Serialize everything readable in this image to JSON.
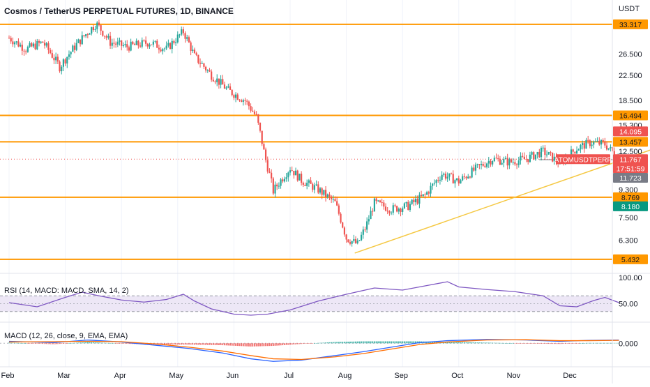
{
  "header": {
    "title": "Cosmos / TetherUS PERPETUAL FUTURES, 1D, BINANCE"
  },
  "colors": {
    "up": "#26a69a",
    "down": "#ef5350",
    "level_line": "#ff9800",
    "trendline": "#f5c842",
    "stop_zone": "#f8c4c4",
    "target_zone": "#c6ece4",
    "rsi_line": "#7e57c2",
    "rsi_band": "#ede7f6",
    "macd_line": "#2962ff",
    "signal_line": "#ff6d00",
    "axis_text": "#131722"
  },
  "chart_data": [
    {
      "type": "candlestick",
      "title": "Cosmos / TetherUS PERPETUAL FUTURES, 1D, BINANCE",
      "currency": "USDT",
      "y_scale": "log",
      "ylim": [
        5.2,
        38.5
      ],
      "x_ticks": [
        "Feb",
        "Mar",
        "Apr",
        "May",
        "Jun",
        "Jul",
        "Aug",
        "Sep",
        "Oct",
        "Nov",
        "Dec"
      ],
      "y_ticks": [
        "26.500",
        "22.500",
        "18.500",
        "15.300",
        "12.500",
        "9.300",
        "7.500",
        "6.300"
      ],
      "close_path": [
        {
          "month": 0.0,
          "price": 30.0
        },
        {
          "month": 0.3,
          "price": 27.5
        },
        {
          "month": 0.6,
          "price": 29.0
        },
        {
          "month": 0.9,
          "price": 24.0
        },
        {
          "month": 1.2,
          "price": 28.5
        },
        {
          "month": 1.55,
          "price": 33.5
        },
        {
          "month": 1.8,
          "price": 29.0
        },
        {
          "month": 2.1,
          "price": 28.0
        },
        {
          "month": 2.5,
          "price": 29.0
        },
        {
          "month": 2.8,
          "price": 27.5
        },
        {
          "month": 3.1,
          "price": 31.5
        },
        {
          "month": 3.3,
          "price": 26.0
        },
        {
          "month": 3.6,
          "price": 22.5
        },
        {
          "month": 3.9,
          "price": 20.0
        },
        {
          "month": 4.2,
          "price": 18.5
        },
        {
          "month": 4.4,
          "price": 16.3
        },
        {
          "month": 4.55,
          "price": 12.0
        },
        {
          "month": 4.7,
          "price": 9.2
        },
        {
          "month": 5.0,
          "price": 11.0
        },
        {
          "month": 5.2,
          "price": 10.0
        },
        {
          "month": 5.5,
          "price": 9.3
        },
        {
          "month": 5.8,
          "price": 8.4
        },
        {
          "month": 6.0,
          "price": 6.4
        },
        {
          "month": 6.2,
          "price": 6.1
        },
        {
          "month": 6.35,
          "price": 7.0
        },
        {
          "month": 6.5,
          "price": 8.4
        },
        {
          "month": 6.8,
          "price": 8.0
        },
        {
          "month": 7.1,
          "price": 8.2
        },
        {
          "month": 7.4,
          "price": 8.9
        },
        {
          "month": 7.7,
          "price": 10.5
        },
        {
          "month": 8.0,
          "price": 9.9
        },
        {
          "month": 8.3,
          "price": 10.9
        },
        {
          "month": 8.6,
          "price": 11.8
        },
        {
          "month": 8.9,
          "price": 11.5
        },
        {
          "month": 9.2,
          "price": 11.8
        },
        {
          "month": 9.5,
          "price": 12.5
        },
        {
          "month": 9.8,
          "price": 11.4
        },
        {
          "month": 10.1,
          "price": 12.8
        },
        {
          "month": 10.35,
          "price": 13.4
        },
        {
          "month": 10.6,
          "price": 13.2
        },
        {
          "month": 10.85,
          "price": 11.77
        }
      ],
      "horizontal_levels": [
        33.317,
        16.494,
        13.457,
        8.769,
        5.432
      ],
      "trendline": {
        "from": {
          "month": 6.15,
          "price": 5.7
        },
        "to": {
          "month": 11.6,
          "price": 13.0
        }
      },
      "position": {
        "type": "short",
        "stop": 14.095,
        "entry": 11.723,
        "target": 8.18
      },
      "price_labels": [
        {
          "text": "33.317",
          "value": 33.317,
          "kind": "level"
        },
        {
          "text": "16.494",
          "value": 16.494,
          "kind": "level"
        },
        {
          "text": "14.095",
          "value": 14.095,
          "kind": "stop"
        },
        {
          "text": "13.457",
          "value": 13.457,
          "kind": "level"
        },
        {
          "text": "11.767",
          "value": 11.767,
          "kind": "last"
        },
        {
          "text": "17:51:59",
          "value": 11.767,
          "kind": "countdown"
        },
        {
          "text": "11.723",
          "value": 11.723,
          "kind": "entry"
        },
        {
          "text": "8.769",
          "value": 8.769,
          "kind": "level"
        },
        {
          "text": "8.180",
          "value": 8.18,
          "kind": "target"
        },
        {
          "text": "5.432",
          "value": 5.432,
          "kind": "level"
        }
      ],
      "symbol_tag": "ATOMUSDTPERP",
      "last_price": 11.767
    },
    {
      "type": "line",
      "title": "RSI (14, MACD: MACD, SMA, 14, 2)",
      "ylim": [
        20,
        100
      ],
      "band": [
        35,
        65
      ],
      "y_ticks": [
        "100.00",
        "50.00"
      ],
      "series": [
        {
          "values": [
            {
              "month": 0.0,
              "value": 52
            },
            {
              "month": 0.5,
              "value": 44
            },
            {
              "month": 1.0,
              "value": 62
            },
            {
              "month": 1.3,
              "value": 72
            },
            {
              "month": 1.6,
              "value": 65
            },
            {
              "month": 2.0,
              "value": 57
            },
            {
              "month": 2.4,
              "value": 53
            },
            {
              "month": 2.8,
              "value": 58
            },
            {
              "month": 3.1,
              "value": 68
            },
            {
              "month": 3.3,
              "value": 55
            },
            {
              "month": 3.6,
              "value": 40
            },
            {
              "month": 4.0,
              "value": 30
            },
            {
              "month": 4.3,
              "value": 28
            },
            {
              "month": 4.6,
              "value": 30
            },
            {
              "month": 5.0,
              "value": 38
            },
            {
              "month": 5.5,
              "value": 55
            },
            {
              "month": 6.0,
              "value": 68
            },
            {
              "month": 6.5,
              "value": 80
            },
            {
              "month": 7.0,
              "value": 76
            },
            {
              "month": 7.5,
              "value": 86
            },
            {
              "month": 7.8,
              "value": 92
            },
            {
              "month": 8.0,
              "value": 82
            },
            {
              "month": 8.5,
              "value": 77
            },
            {
              "month": 9.0,
              "value": 73
            },
            {
              "month": 9.5,
              "value": 65
            },
            {
              "month": 9.8,
              "value": 46
            },
            {
              "month": 10.1,
              "value": 44
            },
            {
              "month": 10.4,
              "value": 56
            },
            {
              "month": 10.6,
              "value": 62
            },
            {
              "month": 10.85,
              "value": 52
            }
          ]
        }
      ]
    },
    {
      "type": "line+bar",
      "title": "MACD (12, 26, close, 9, EMA, EMA)",
      "ylim": [
        -3.2,
        2.4
      ],
      "y_ticks": [
        "0.000"
      ],
      "series": [
        {
          "name": "MACD",
          "values": [
            {
              "month": 0.0,
              "value": 0.3
            },
            {
              "month": 0.8,
              "value": 0.1
            },
            {
              "month": 1.4,
              "value": 0.5
            },
            {
              "month": 2.0,
              "value": 0.2
            },
            {
              "month": 2.6,
              "value": -0.3
            },
            {
              "month": 3.2,
              "value": -0.8
            },
            {
              "month": 3.8,
              "value": -1.5
            },
            {
              "month": 4.3,
              "value": -2.4
            },
            {
              "month": 4.7,
              "value": -2.8
            },
            {
              "month": 5.2,
              "value": -2.6
            },
            {
              "month": 5.8,
              "value": -1.9
            },
            {
              "month": 6.3,
              "value": -1.3
            },
            {
              "month": 6.8,
              "value": -0.6
            },
            {
              "month": 7.3,
              "value": 0.1
            },
            {
              "month": 7.8,
              "value": 0.4
            },
            {
              "month": 8.5,
              "value": 0.6
            },
            {
              "month": 9.2,
              "value": 0.5
            },
            {
              "month": 9.8,
              "value": 0.3
            },
            {
              "month": 10.3,
              "value": 0.45
            },
            {
              "month": 10.85,
              "value": 0.5
            }
          ]
        },
        {
          "name": "Signal",
          "values": [
            {
              "month": 0.0,
              "value": 0.2
            },
            {
              "month": 0.8,
              "value": 0.25
            },
            {
              "month": 1.4,
              "value": 0.3
            },
            {
              "month": 2.0,
              "value": 0.25
            },
            {
              "month": 2.6,
              "value": -0.1
            },
            {
              "month": 3.2,
              "value": -0.6
            },
            {
              "month": 3.8,
              "value": -1.2
            },
            {
              "month": 4.3,
              "value": -1.9
            },
            {
              "month": 4.7,
              "value": -2.4
            },
            {
              "month": 5.2,
              "value": -2.5
            },
            {
              "month": 5.8,
              "value": -2.1
            },
            {
              "month": 6.3,
              "value": -1.6
            },
            {
              "month": 6.8,
              "value": -0.9
            },
            {
              "month": 7.3,
              "value": -0.2
            },
            {
              "month": 7.8,
              "value": 0.2
            },
            {
              "month": 8.5,
              "value": 0.5
            },
            {
              "month": 9.2,
              "value": 0.55
            },
            {
              "month": 9.8,
              "value": 0.4
            },
            {
              "month": 10.3,
              "value": 0.4
            },
            {
              "month": 10.85,
              "value": 0.45
            }
          ]
        }
      ]
    }
  ]
}
